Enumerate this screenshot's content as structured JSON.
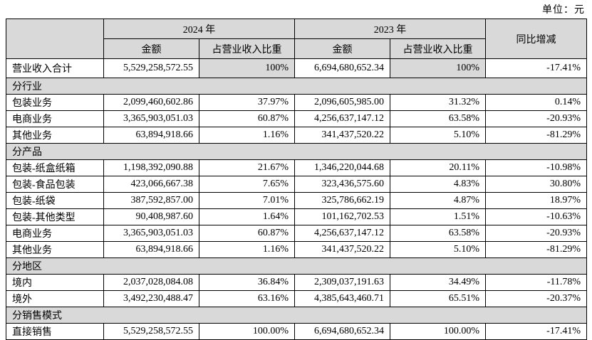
{
  "unit_label": "单位：元",
  "table": {
    "header": {
      "year_2024": "2024 年",
      "year_2023": "2023 年",
      "amount": "金额",
      "proportion": "占营业收入比重",
      "yoy": "同比增减"
    },
    "rows": [
      {
        "type": "total",
        "label": "营业收入合计",
        "a2024": "5,529,258,572.55",
        "p2024": "100%",
        "a2023": "6,694,680,652.34",
        "p2023": "100%",
        "yoy": "-17.41%"
      },
      {
        "type": "section",
        "label": "分行业"
      },
      {
        "type": "data",
        "label": "包装业务",
        "a2024": "2,099,460,602.86",
        "p2024": "37.97%",
        "a2023": "2,096,605,985.00",
        "p2023": "31.32%",
        "yoy": "0.14%"
      },
      {
        "type": "data",
        "label": "电商业务",
        "a2024": "3,365,903,051.03",
        "p2024": "60.87%",
        "a2023": "4,256,637,147.12",
        "p2023": "63.58%",
        "yoy": "-20.93%"
      },
      {
        "type": "data",
        "label": "其他业务",
        "a2024": "63,894,918.66",
        "p2024": "1.16%",
        "a2023": "341,437,520.22",
        "p2023": "5.10%",
        "yoy": "-81.29%"
      },
      {
        "type": "section",
        "label": "分产品"
      },
      {
        "type": "data",
        "label": "包装-纸盒纸箱",
        "a2024": "1,198,392,090.88",
        "p2024": "21.67%",
        "a2023": "1,346,220,044.68",
        "p2023": "20.11%",
        "yoy": "-10.98%"
      },
      {
        "type": "data",
        "label": "包装-食品包装",
        "a2024": "423,066,667.38",
        "p2024": "7.65%",
        "a2023": "323,436,575.60",
        "p2023": "4.83%",
        "yoy": "30.80%"
      },
      {
        "type": "data",
        "label": "包装-纸袋",
        "a2024": "387,592,857.00",
        "p2024": "7.01%",
        "a2023": "325,786,662.19",
        "p2023": "4.87%",
        "yoy": "18.97%"
      },
      {
        "type": "data",
        "label": "包装-其他类型",
        "a2024": "90,408,987.60",
        "p2024": "1.64%",
        "a2023": "101,162,702.53",
        "p2023": "1.51%",
        "yoy": "-10.63%"
      },
      {
        "type": "data",
        "label": "电商业务",
        "a2024": "3,365,903,051.03",
        "p2024": "60.87%",
        "a2023": "4,256,637,147.12",
        "p2023": "63.58%",
        "yoy": "-20.93%"
      },
      {
        "type": "data",
        "label": "其他业务",
        "a2024": "63,894,918.66",
        "p2024": "1.16%",
        "a2023": "341,437,520.22",
        "p2023": "5.10%",
        "yoy": "-81.29%"
      },
      {
        "type": "section",
        "label": "分地区"
      },
      {
        "type": "data",
        "label": "境内",
        "a2024": "2,037,028,084.08",
        "p2024": "36.84%",
        "a2023": "2,309,037,191.63",
        "p2023": "34.49%",
        "yoy": "-11.78%"
      },
      {
        "type": "data",
        "label": "境外",
        "a2024": "3,492,230,488.47",
        "p2024": "63.16%",
        "a2023": "4,385,643,460.71",
        "p2023": "65.51%",
        "yoy": "-20.37%"
      },
      {
        "type": "section",
        "label": "分销售模式"
      },
      {
        "type": "data",
        "label": "直接销售",
        "a2024": "5,529,258,572.55",
        "p2024": "100.00%",
        "a2023": "6,694,680,652.34",
        "p2023": "100.00%",
        "yoy": "-17.41%"
      }
    ]
  }
}
